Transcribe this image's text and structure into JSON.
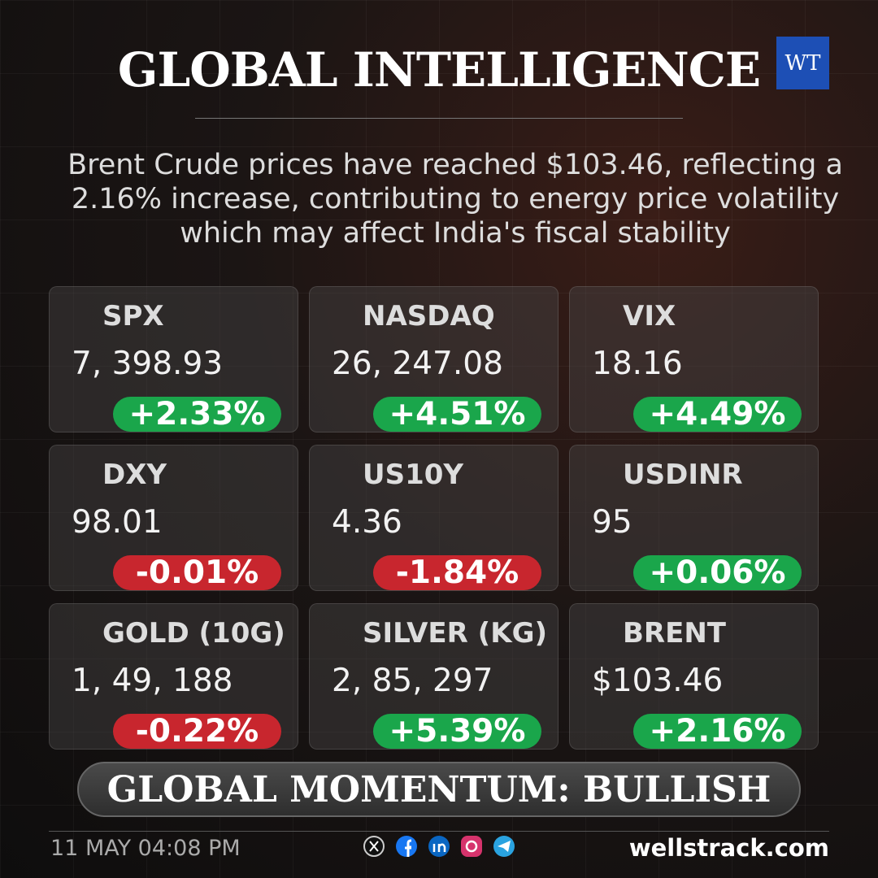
{
  "header": {
    "title": "GLOBAL INTELLIGENCE",
    "logo": "WT"
  },
  "summary": "Brent Crude prices have reached $103.46, reflecting a 2.16% increase, contributing to energy price volatility which may affect India's fiscal stability",
  "cards": [
    {
      "name": "SPX",
      "value": "7, 398.93",
      "change": "+2.33%",
      "color": "#1aa64b"
    },
    {
      "name": "NASDAQ",
      "value": "26, 247.08",
      "change": "+4.51%",
      "color": "#1aa64b"
    },
    {
      "name": "VIX",
      "value": "18.16",
      "change": "+4.49%",
      "color": "#1aa64b"
    },
    {
      "name": "DXY",
      "value": "98.01",
      "change": "-0.01%",
      "color": "#c8262e"
    },
    {
      "name": "US10Y",
      "value": "4.36",
      "change": "-1.84%",
      "color": "#c8262e"
    },
    {
      "name": "USDINR",
      "value": "95",
      "change": "+0.06%",
      "color": "#1aa64b"
    },
    {
      "name": "GOLD (10G)",
      "value": "1, 49, 188",
      "change": "-0.22%",
      "color": "#c8262e"
    },
    {
      "name": "SILVER (KG)",
      "value": "2, 85, 297",
      "change": "+5.39%",
      "color": "#1aa64b"
    },
    {
      "name": "BRENT",
      "value": "$103.46",
      "change": "+2.16%",
      "color": "#1aa64b"
    }
  ],
  "momentum": "GLOBAL MOMENTUM: BULLISH",
  "footer": {
    "timestamp": "11 MAY 04:08 PM",
    "site": "wellstrack.com"
  }
}
